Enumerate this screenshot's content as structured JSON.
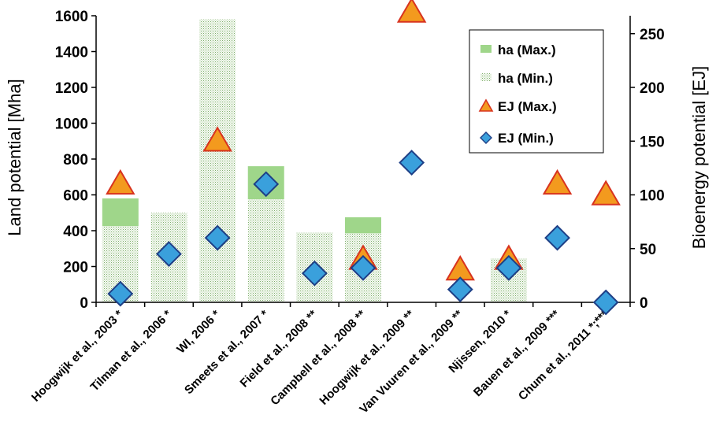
{
  "chart_data": {
    "type": "bar",
    "categories": [
      "Hoogwijk et al., 2003 *",
      "Tilman et al., 2006 *",
      "WI, 2006 *",
      "Smeets et al., 2007 *",
      "Field et al., 2008 **",
      "Campbell et al., 2008 **",
      "Hoogwijk et al., 2009 **",
      "Van Vuuren et al., 2009 **",
      "Njissen, 2010 *",
      "Bauen et al., 2009 ***",
      "Chum et al., 2011 *;***"
    ],
    "series": [
      {
        "name": "ha (Max.)",
        "axis": "left",
        "values": [
          580,
          500,
          1580,
          760,
          390,
          475,
          null,
          null,
          245,
          null,
          null
        ],
        "color": "#9fd68a"
      },
      {
        "name": "ha (Min.)",
        "axis": "left",
        "values": [
          425,
          500,
          1580,
          575,
          390,
          385,
          null,
          null,
          245,
          null,
          null
        ],
        "color": "#e9f3e4"
      },
      {
        "name": "EJ (Max.)",
        "axis": "right",
        "values": [
          110,
          null,
          150,
          null,
          null,
          40,
          270,
          30,
          40,
          110,
          100
        ],
        "color": "#f39a1e"
      },
      {
        "name": "EJ (Min.)",
        "axis": "right",
        "values": [
          8,
          45,
          60,
          110,
          27,
          32,
          130,
          12,
          32,
          60,
          0
        ],
        "color": "#3aa0dc"
      }
    ],
    "ylabel": "Land potential [Mha]",
    "y2label": "Bioenergy potential [EJ]",
    "ylim": [
      0,
      1600
    ],
    "y2lim": [
      0,
      266.67
    ],
    "yticks": [
      "0",
      "200",
      "400",
      "600",
      "800",
      "1000",
      "1200",
      "1400",
      "1600"
    ],
    "y2ticks": [
      "0",
      "50",
      "100",
      "150",
      "200",
      "250"
    ],
    "legend_position": "top-right",
    "grid": false
  }
}
